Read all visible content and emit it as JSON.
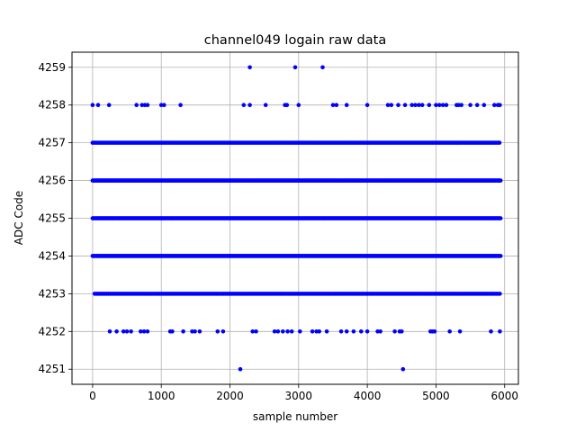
{
  "chart_data": {
    "type": "scatter",
    "title": "channel049 logain raw data",
    "xlabel": "sample number",
    "ylabel": "ADC Code",
    "xlim": [
      -300,
      6200
    ],
    "ylim": [
      4250.6,
      4259.4
    ],
    "x_ticks": [
      0,
      1000,
      2000,
      3000,
      4000,
      5000,
      6000
    ],
    "y_ticks": [
      4251,
      4252,
      4253,
      4254,
      4255,
      4256,
      4257,
      4258,
      4259
    ],
    "grid": true,
    "marker_color": "#0000ff",
    "n_samples": 5940,
    "dense_levels": [
      4253,
      4254,
      4255,
      4256,
      4257
    ],
    "series": [
      {
        "values_by_level": [
          {
            "y": 4259,
            "x": [
              2290,
              2950,
              3350
            ]
          },
          {
            "y": 4258,
            "x": [
              0,
              80,
              240,
              640,
              720,
              760,
              800,
              1000,
              1040,
              1280,
              2200,
              2290,
              2520,
              2800,
              2830,
              3000,
              3500,
              3550,
              3700,
              4000,
              4300,
              4350,
              4450,
              4550,
              4650,
              4700,
              4750,
              4800,
              4900,
              5000,
              5050,
              5100,
              5150,
              5300,
              5330,
              5370,
              5500,
              5600,
              5700,
              5850,
              5900,
              5930
            ]
          },
          {
            "y": 4252,
            "x": [
              250,
              350,
              450,
              500,
              560,
              700,
              750,
              800,
              1130,
              1160,
              1320,
              1450,
              1490,
              1560,
              1820,
              1900,
              2330,
              2380,
              2650,
              2700,
              2770,
              2840,
              2900,
              3020,
              3200,
              3260,
              3300,
              3410,
              3620,
              3700,
              3800,
              3910,
              4000,
              4150,
              4190,
              4400,
              4470,
              4500,
              4920,
              4950,
              4980,
              5200,
              5350,
              5800,
              5930
            ]
          },
          {
            "y": 4251,
            "x": [
              2150,
              4520
            ]
          }
        ]
      }
    ]
  }
}
